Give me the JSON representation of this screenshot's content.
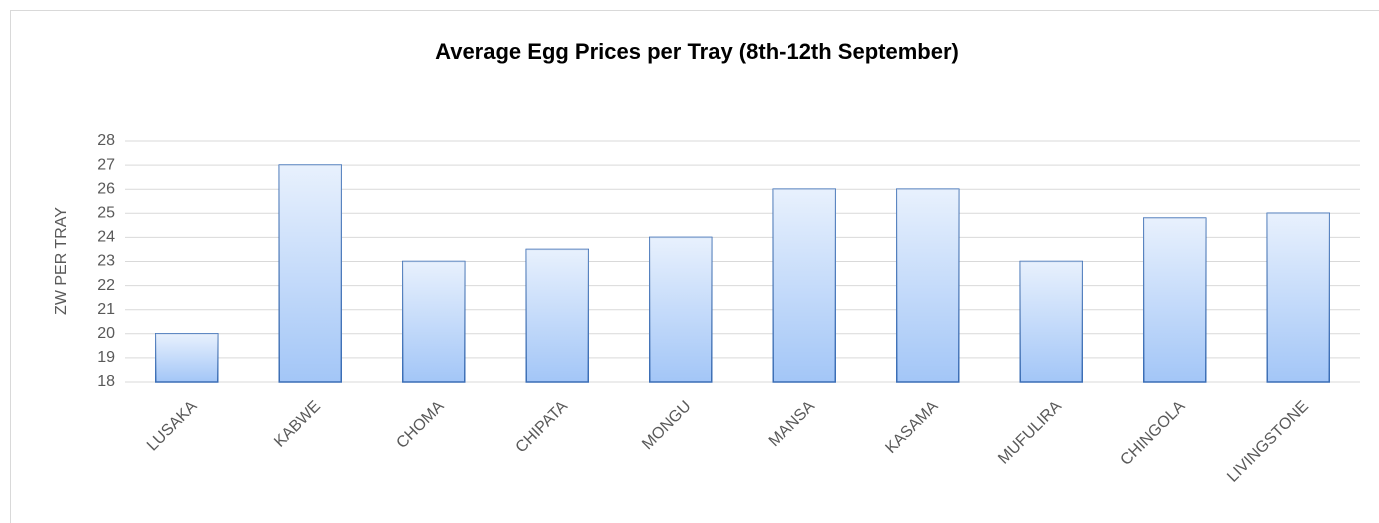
{
  "chart_data": {
    "type": "bar",
    "title": "Average Egg Prices per Tray (8th-12th September)",
    "y_label": "ZW PER TRAY",
    "categories": [
      "LUSAKA",
      "KABWE",
      "CHOMA",
      "CHIPATA",
      "MONGU",
      "MANSA",
      "KASAMA",
      "MUFULIRA",
      "CHINGOLA",
      "LIVINGSTONE"
    ],
    "values": [
      20,
      27,
      23,
      23.5,
      24,
      26,
      26,
      23,
      24.8,
      25
    ],
    "color": "#a3c6f7",
    "ylim": [
      18,
      28
    ],
    "yticks": [
      18,
      19,
      20,
      21,
      22,
      23,
      24,
      25,
      26,
      27,
      28
    ],
    "grid": true
  }
}
